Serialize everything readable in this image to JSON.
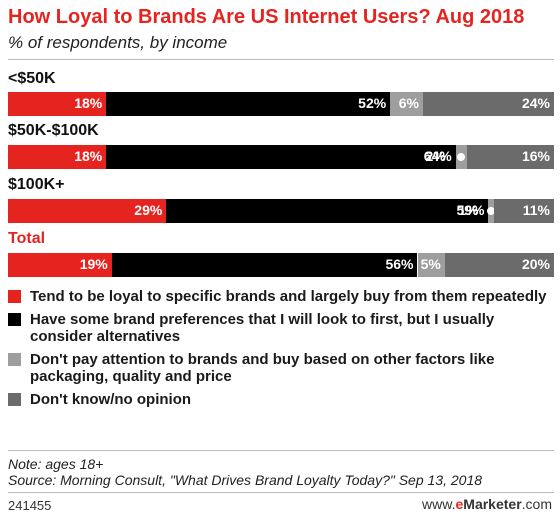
{
  "header": {
    "title": "How Loyal to Brands Are US Internet Users? Aug 2018",
    "subtitle": "% of respondents, by income"
  },
  "colors": {
    "accent": "#e52420",
    "loyal": "#e52420",
    "preferences": "#000000",
    "no_attention": "#9e9e9e",
    "dont_know": "#6b6b6b"
  },
  "chart_data": {
    "type": "bar",
    "orientation": "horizontal",
    "stacked": true,
    "title": "How Loyal to Brands Are US Internet Users? Aug 2018",
    "subtitle": "% of respondents, by income",
    "categories": [
      "<$50K",
      "$50K-$100K",
      "$100K+",
      "Total"
    ],
    "series": [
      {
        "name": "Tend to be loyal to specific brands and largely buy from them repeatedly",
        "values": [
          18,
          18,
          29,
          19
        ],
        "labels": [
          "18%",
          "18%",
          "29%",
          "19%"
        ]
      },
      {
        "name": "Have some brand preferences that I will look to first, but I usually consider alternatives",
        "values": [
          52,
          64,
          59,
          56
        ],
        "labels": [
          "52%",
          "64%",
          "59%",
          "56%"
        ]
      },
      {
        "name": "Don't pay attention to brands and buy based on other factors like packaging, quality and price",
        "values": [
          6,
          2,
          1,
          5
        ],
        "labels": [
          "6%",
          "2%",
          "1%",
          "5%"
        ]
      },
      {
        "name": "Don't know/no opinion",
        "values": [
          24,
          16,
          11,
          20
        ],
        "labels": [
          "24%",
          "16%",
          "11%",
          "20%"
        ]
      }
    ],
    "xlim": [
      0,
      100
    ],
    "legend_position": "bottom"
  },
  "footer": {
    "note": "Note: ages 18+",
    "source": "Source: Morning Consult, \"What Drives Brand Loyalty Today?\" Sep 13, 2018",
    "id": "241455",
    "brand_prefix": "www.",
    "brand_e": "e",
    "brand_name": "Marketer",
    "brand_suffix": ".com"
  }
}
